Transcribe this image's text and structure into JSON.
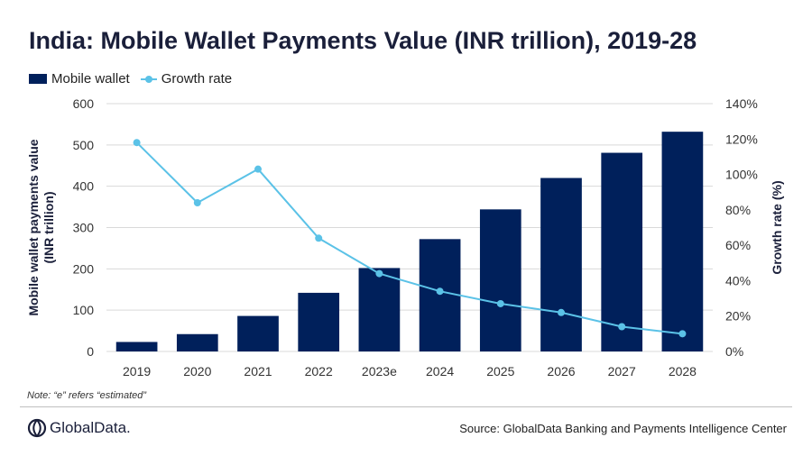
{
  "title": "India: Mobile Wallet Payments Value (INR trillion), 2019-28",
  "legend": {
    "bar_label": "Mobile wallet",
    "line_label": "Growth rate"
  },
  "chart_data": {
    "type": "bar",
    "categories": [
      "2019",
      "2020",
      "2021",
      "2022",
      "2023e",
      "2024",
      "2025",
      "2026",
      "2027",
      "2028"
    ],
    "series": [
      {
        "name": "Mobile wallet",
        "type": "bar",
        "axis": "left",
        "values": [
          23,
          42,
          86,
          142,
          202,
          272,
          344,
          420,
          481,
          532
        ]
      },
      {
        "name": "Growth rate",
        "type": "line",
        "axis": "right",
        "values": [
          118,
          84,
          103,
          64,
          44,
          34,
          27,
          22,
          14,
          10
        ]
      }
    ],
    "ylabel": "Mobile wallet payments value (INR trillion)",
    "ylabel_lines": [
      "Mobile wallet payments value",
      "(INR trillion)"
    ],
    "y2label": "Growth rate (%)",
    "ylim": [
      0,
      600
    ],
    "y_ticks": [
      0,
      100,
      200,
      300,
      400,
      500,
      600
    ],
    "y2lim": [
      0,
      140
    ],
    "y2_ticks": [
      "0%",
      "20%",
      "40%",
      "60%",
      "80%",
      "100%",
      "120%",
      "140%"
    ],
    "grid": true,
    "legend_position": "top-left",
    "colors": {
      "bar": "#00205b",
      "line": "#5bc2e7",
      "grid": "#d9d9d9"
    }
  },
  "note": "Note: “e” refers “estimated”",
  "logo_text": "GlobalData.",
  "source": "Source: GlobalData Banking and Payments Intelligence Center"
}
